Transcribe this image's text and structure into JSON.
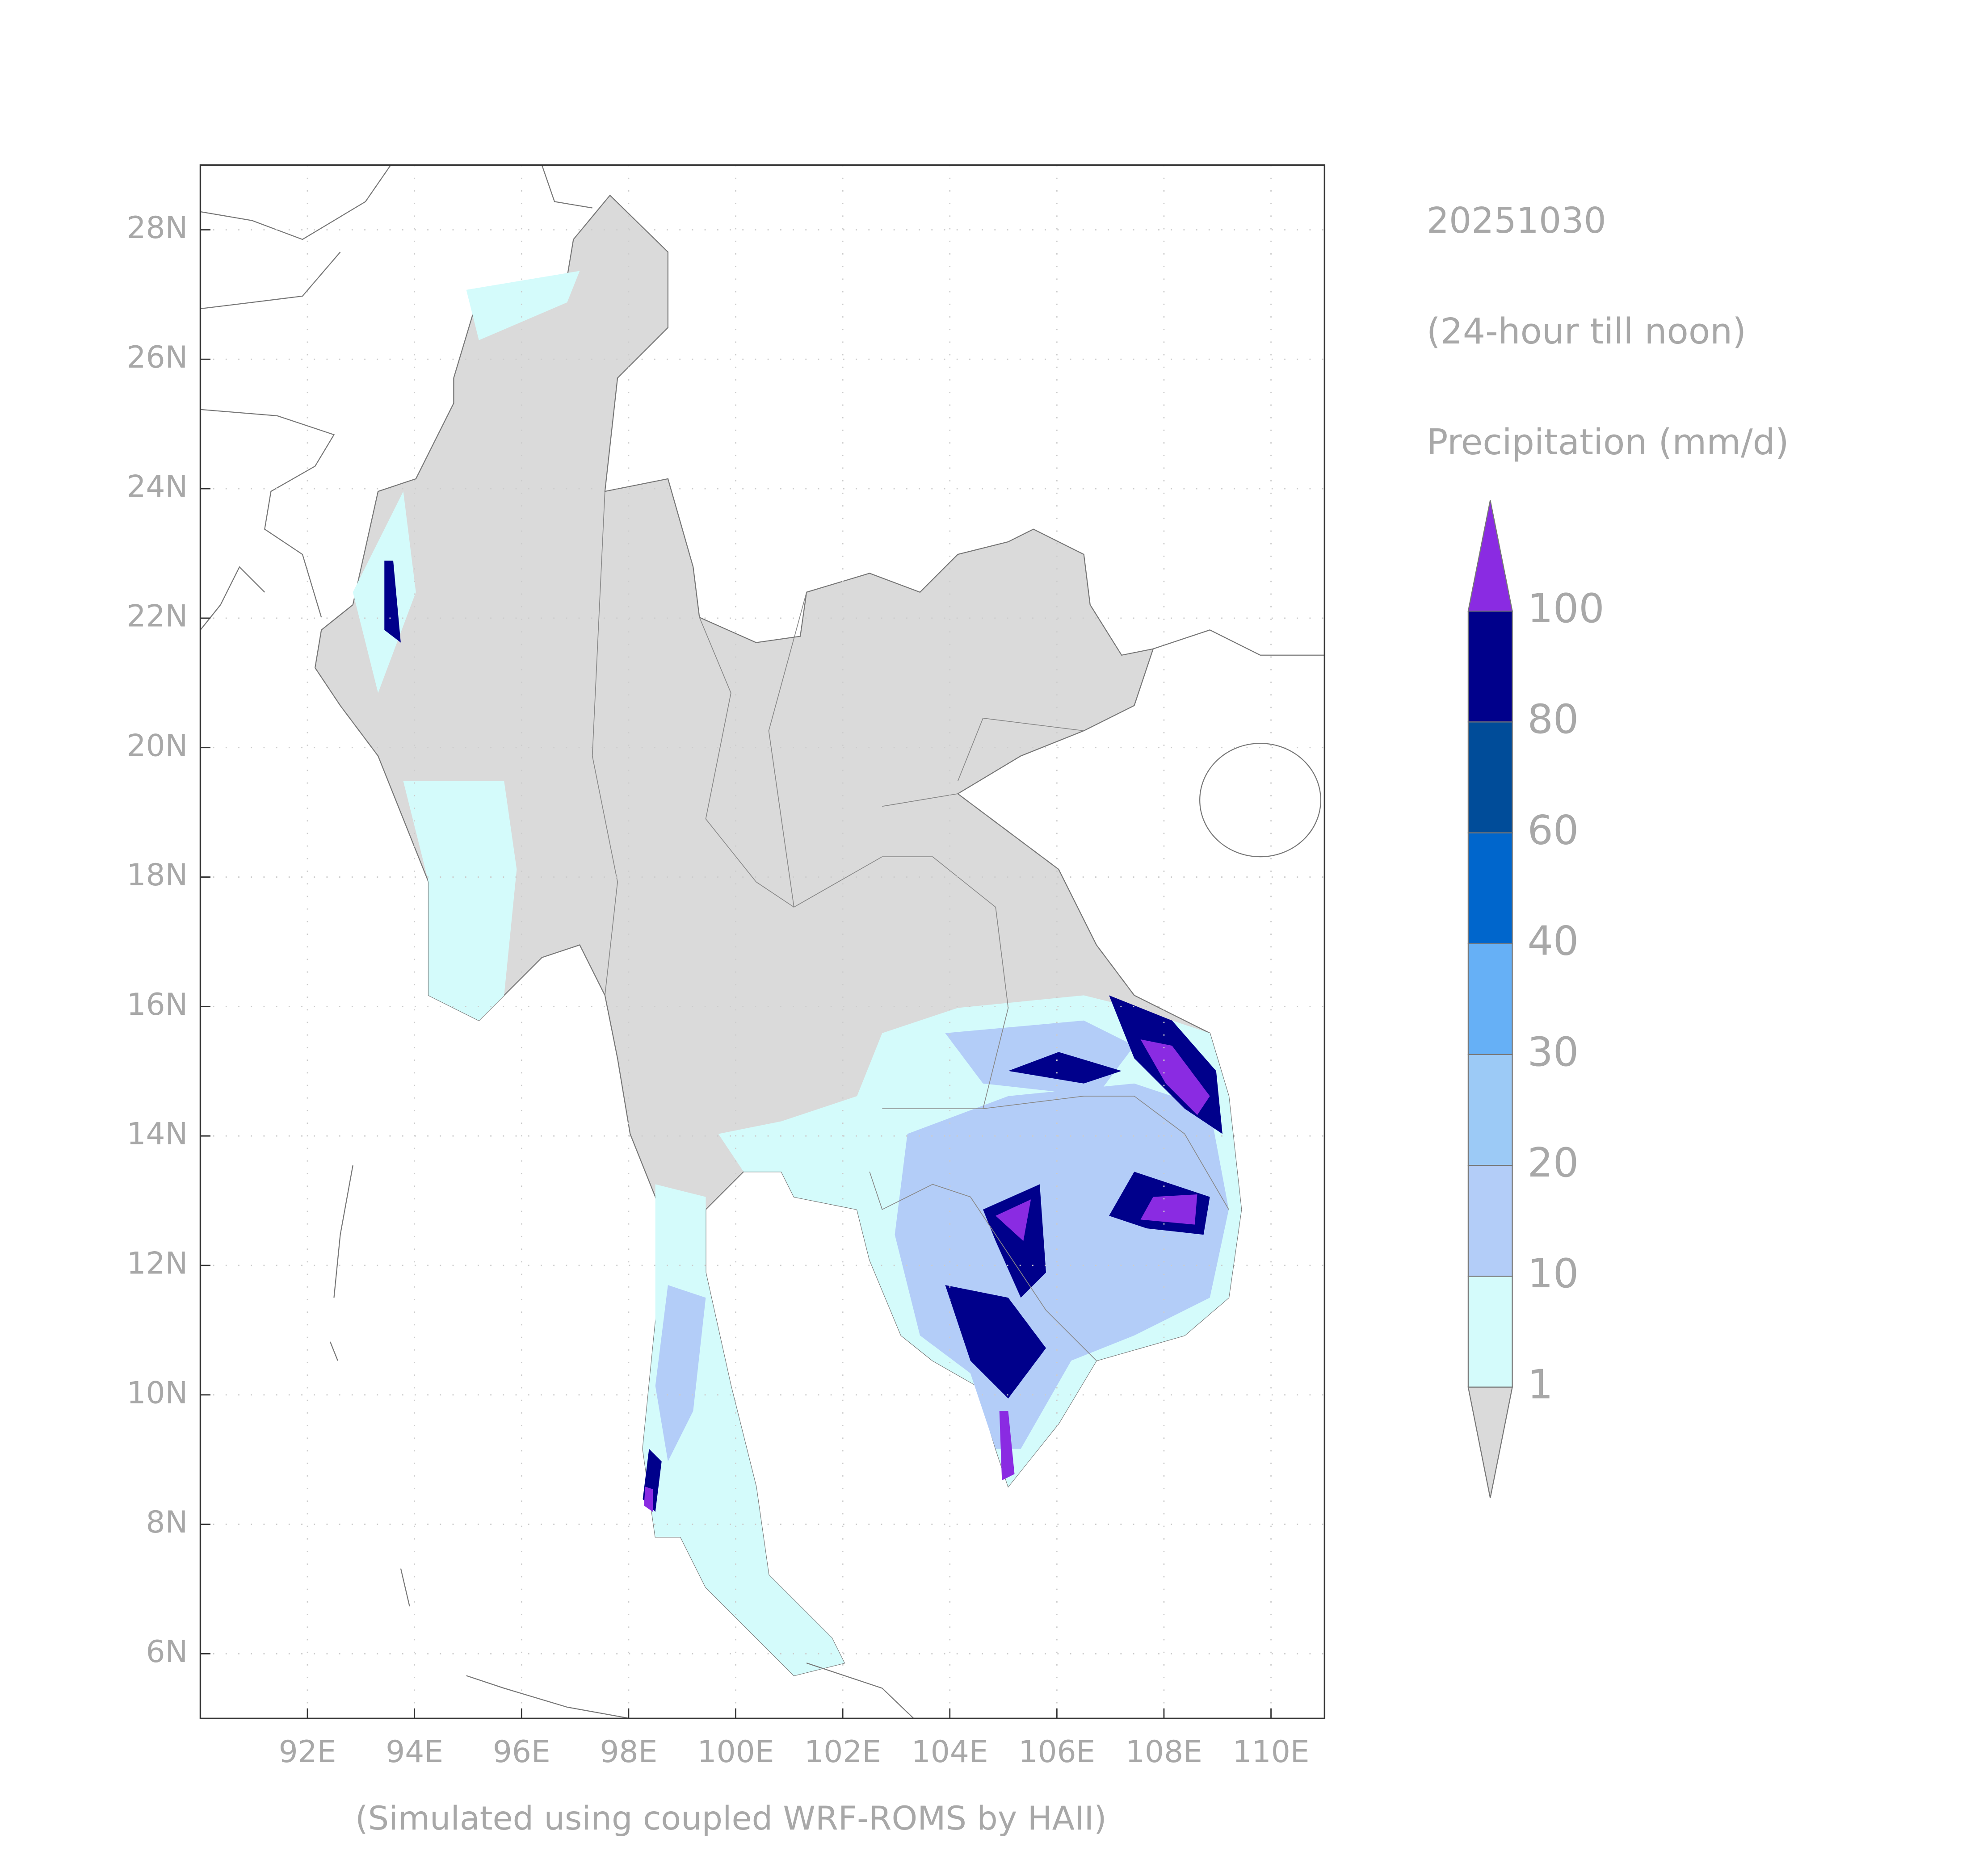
{
  "date": "20251030",
  "period": "(24-hour till noon)",
  "variable": "Precipitation (mm/d)",
  "footer": "(Simulated using coupled WRF-ROMS by HAII)",
  "map": {
    "xlim": [
      90,
      111
    ],
    "ylim": [
      5,
      29
    ],
    "xticks": [
      {
        "value": 92,
        "label": "92E"
      },
      {
        "value": 94,
        "label": "94E"
      },
      {
        "value": 96,
        "label": "96E"
      },
      {
        "value": 98,
        "label": "98E"
      },
      {
        "value": 100,
        "label": "100E"
      },
      {
        "value": 102,
        "label": "102E"
      },
      {
        "value": 104,
        "label": "104E"
      },
      {
        "value": 106,
        "label": "106E"
      },
      {
        "value": 108,
        "label": "108E"
      },
      {
        "value": 110,
        "label": "110E"
      }
    ],
    "yticks": [
      {
        "value": 6,
        "label": "6N"
      },
      {
        "value": 8,
        "label": "8N"
      },
      {
        "value": 10,
        "label": "10N"
      },
      {
        "value": 12,
        "label": "12N"
      },
      {
        "value": 14,
        "label": "14N"
      },
      {
        "value": 16,
        "label": "16N"
      },
      {
        "value": 18,
        "label": "18N"
      },
      {
        "value": 20,
        "label": "20N"
      },
      {
        "value": 22,
        "label": "22N"
      },
      {
        "value": 24,
        "label": "24N"
      },
      {
        "value": 26,
        "label": "26N"
      },
      {
        "value": 28,
        "label": "28N"
      }
    ],
    "grid": true
  },
  "colorbar": {
    "levels": [
      1,
      10,
      20,
      30,
      40,
      60,
      80,
      100
    ],
    "colors": [
      "#dadada",
      "#d4fbfb",
      "#b3cdf8",
      "#9ccaf6",
      "#66b0f6",
      "#0066cc",
      "#004c99",
      "#00008b",
      "#8a2be2"
    ]
  }
}
